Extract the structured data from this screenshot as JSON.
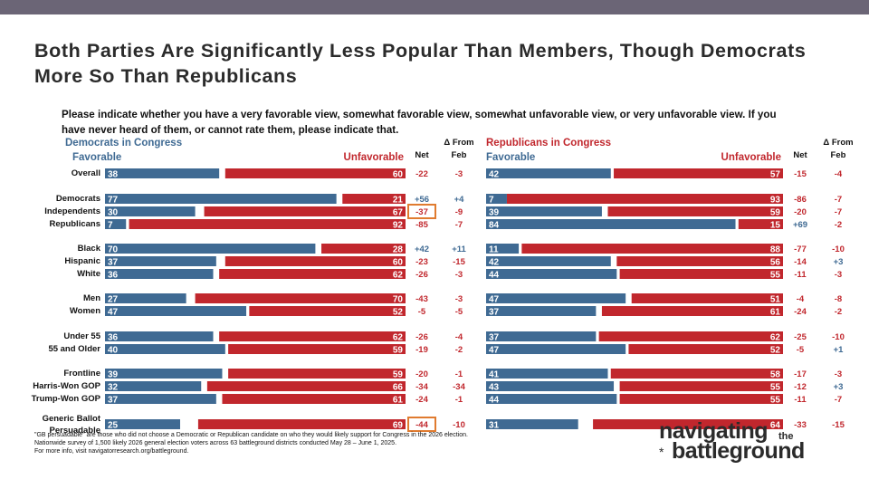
{
  "title": "Both Parties Are Significantly Less Popular Than Members, Though Democrats More So Than Republicans",
  "question": "Please indicate whether you have a very favorable view, somewhat favorable view, somewhat unfavorable view, or very unfavorable view. If you have never heard of them, or cannot rate them, please indicate that.",
  "colors": {
    "favorable": "#3f6a93",
    "unfavorable": "#c1272d",
    "dem_header": "#3f6a93",
    "rep_header": "#c1272d",
    "highlight_box": "#e07b2f"
  },
  "chart_data": {
    "type": "bar",
    "subtype": "stacked-horizontal-diverging",
    "headers": {
      "favorable": "Favorable",
      "unfavorable": "Unfavorable",
      "net": "Net",
      "change": "Δ From Feb"
    },
    "categories": [
      "Overall",
      "Democrats",
      "Independents",
      "Republicans",
      "Black",
      "Hispanic",
      "White",
      "Men",
      "Women",
      "Under 55",
      "55 and Older",
      "Frontline",
      "Harris-Won GOP",
      "Trump-Won GOP",
      "Generic Ballot Persuadable"
    ],
    "panels": [
      {
        "name": "Democrats in Congress",
        "favorable": [
          38,
          77,
          30,
          7,
          70,
          37,
          36,
          27,
          47,
          36,
          40,
          39,
          32,
          37,
          25
        ],
        "unfavorable": [
          60,
          21,
          67,
          92,
          28,
          60,
          62,
          70,
          52,
          62,
          59,
          59,
          66,
          61,
          69
        ],
        "net": [
          "-22",
          "+56",
          "-37",
          "-85",
          "+42",
          "-23",
          "-26",
          "-43",
          "-5",
          "-26",
          "-19",
          "-20",
          "-34",
          "-24",
          "-44"
        ],
        "change": [
          "-3",
          "+4",
          "-9",
          "-7",
          "+11",
          "-15",
          "-3",
          "-3",
          "-5",
          "-4",
          "-2",
          "-1",
          "-34",
          "-1",
          "-10"
        ],
        "highlighted_net": [
          2,
          14
        ]
      },
      {
        "name": "Republicans in Congress",
        "favorable": [
          42,
          7,
          39,
          84,
          11,
          42,
          44,
          47,
          37,
          37,
          47,
          41,
          43,
          44,
          31
        ],
        "unfavorable": [
          57,
          93,
          59,
          15,
          88,
          56,
          55,
          51,
          61,
          62,
          52,
          58,
          55,
          55,
          64
        ],
        "net": [
          "-15",
          "-86",
          "-20",
          "+69",
          "-77",
          "-14",
          "-11",
          "-4",
          "-24",
          "-25",
          "-5",
          "-17",
          "-12",
          "-11",
          "-33"
        ],
        "change": [
          "-4",
          "-7",
          "-7",
          "-2",
          "-10",
          "+3",
          "-3",
          "-8",
          "-2",
          "-10",
          "+1",
          "-3",
          "+3",
          "-7",
          "-15"
        ],
        "highlighted_net": []
      }
    ]
  },
  "row_labels": {
    "generic_line1": "Generic Ballot",
    "generic_line2": "Persuadable"
  },
  "footnotes": [
    "\"GB persuadable\" are those who did not choose a Democratic or Republican candidate on who they would likely support for Congress in the 2026 election.",
    "Nationwide survey of 1,500 likely 2026 general election voters across 63 battleground districts conducted May 28 – June 1, 2025.",
    "For more info, visit navigatorresearch.org/battleground."
  ],
  "logo": {
    "line1": "navigating",
    "the": "the",
    "line2": "battleground",
    "star": "*"
  }
}
